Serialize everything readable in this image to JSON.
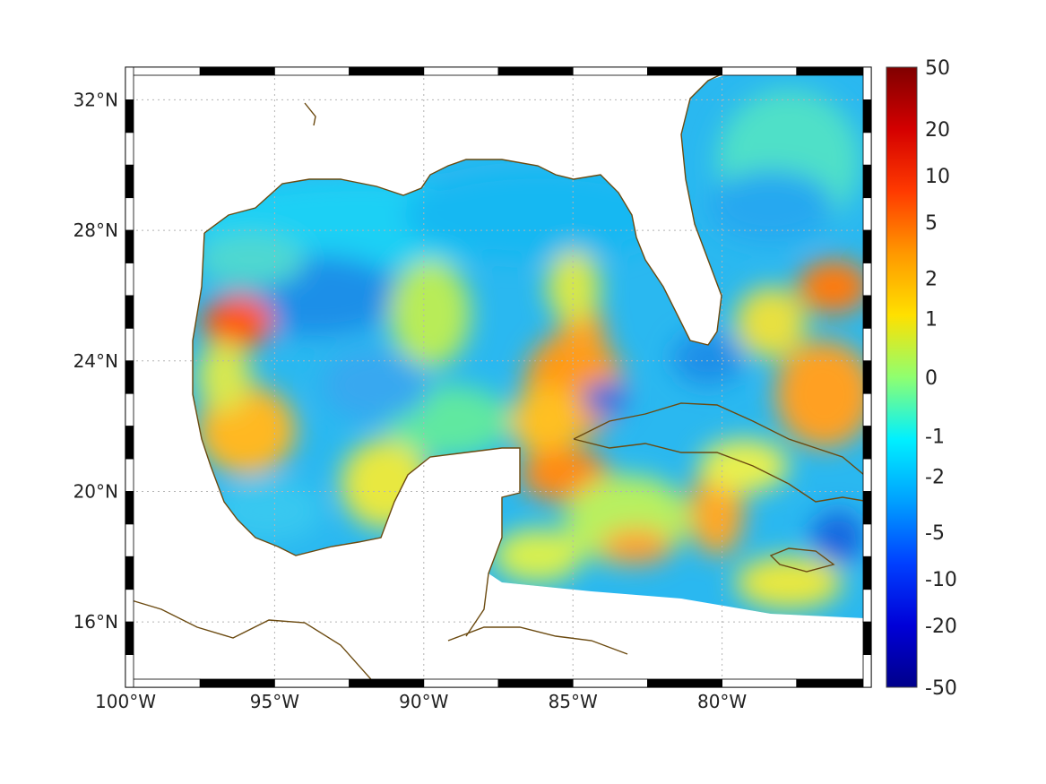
{
  "map": {
    "lon_range": [
      -100,
      -75
    ],
    "lat_range": [
      14,
      33
    ],
    "x_ticks": [
      {
        "lon": -100,
        "label": "100°W"
      },
      {
        "lon": -95,
        "label": "95°W"
      },
      {
        "lon": -90,
        "label": "90°W"
      },
      {
        "lon": -85,
        "label": "85°W"
      },
      {
        "lon": -80,
        "label": "80°W"
      }
    ],
    "y_ticks": [
      {
        "lat": 32,
        "label": "32°N"
      },
      {
        "lat": 28,
        "label": "28°N"
      },
      {
        "lat": 24,
        "label": "24°N"
      },
      {
        "lat": 20,
        "label": "20°N"
      },
      {
        "lat": 16,
        "label": "16°N"
      }
    ],
    "grid": "dotted",
    "frame": "alternating-black-white",
    "coast_color": "#6b4a10",
    "colormap": "jet"
  },
  "colorbar": {
    "position": "right",
    "scale": "nonlinear",
    "labels": [
      "50",
      "20",
      "10",
      "5",
      "2",
      "1",
      "0",
      "-1",
      "-2",
      "-5",
      "-10",
      "-20",
      "-50"
    ],
    "positions": [
      0,
      0.1,
      0.175,
      0.25,
      0.34,
      0.405,
      0.5,
      0.595,
      0.66,
      0.75,
      0.825,
      0.9,
      1
    ]
  }
}
